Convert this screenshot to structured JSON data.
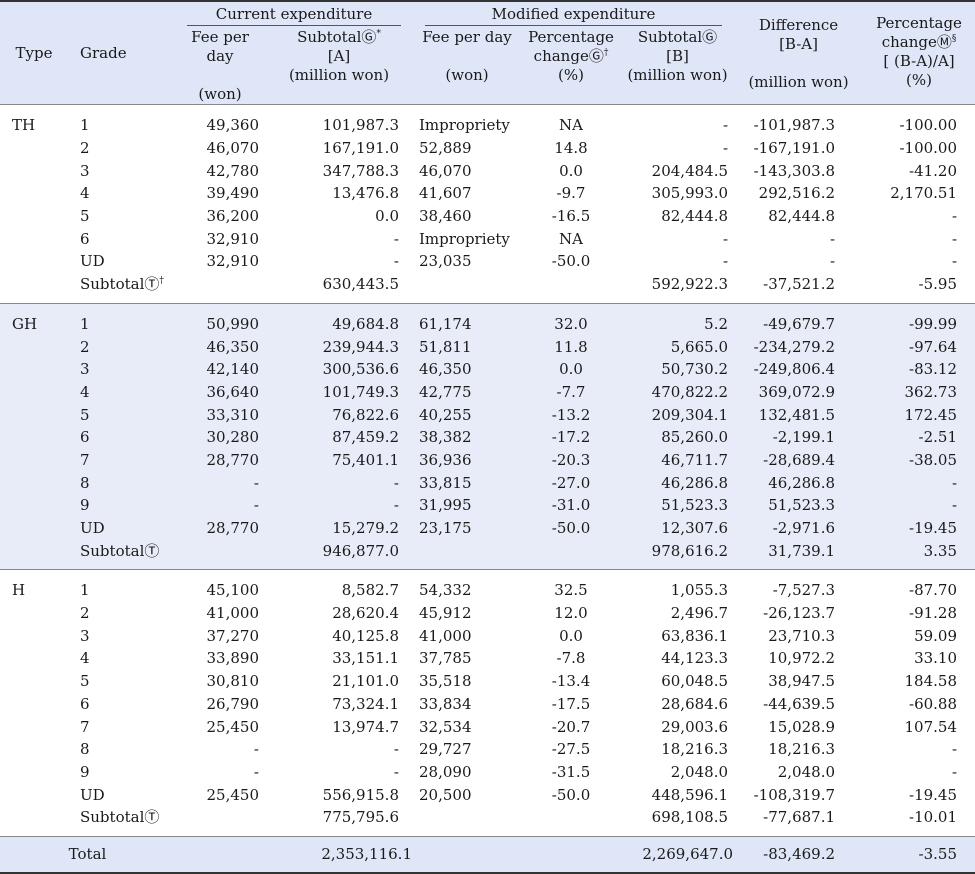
{
  "header": {
    "type": "Type",
    "grade": "Grade",
    "current_group": "Current expenditure",
    "modified_group": "Modified expenditure",
    "difference": "Difference",
    "difference_sub": "[B-A]",
    "difference_unit": "(million won)",
    "pct_change_total": "Percentage",
    "pct_change_total_2": "changeⓂ",
    "pct_change_total_sup": "§",
    "pct_change_total_sub": "[ (B-A)/A]",
    "pct_change_total_unit": "(%)",
    "fee_per_day": "Fee per day",
    "fee_unit": "(won)",
    "subtotal_current": "SubtotalⒼ",
    "subtotal_current_sup": "*",
    "subtotal_current_sub": "[A]",
    "subtotal_unit": "(million won)",
    "pct_change": "Percentage",
    "pct_change_2": "changeⒼ",
    "pct_change_sup": "†",
    "pct_unit": "(%)",
    "subtotal_modified": "SubtotalⒼ",
    "subtotal_modified_sub": "[B]",
    "subtotal_modified_unit": "(million won)"
  },
  "sections": [
    {
      "type": "TH",
      "rows": [
        {
          "grade": "1",
          "fee1": "49,360",
          "sub1": "101,987.3",
          "fee2": "Impropriety",
          "pct": "NA",
          "sub2": "-",
          "diff": "-101,987.3",
          "pct2": "-100.00"
        },
        {
          "grade": "2",
          "fee1": "46,070",
          "sub1": "167,191.0",
          "fee2": "52,889",
          "pct": "14.8",
          "sub2": "-",
          "diff": "-167,191.0",
          "pct2": "-100.00"
        },
        {
          "grade": "3",
          "fee1": "42,780",
          "sub1": "347,788.3",
          "fee2": "46,070",
          "pct": "0.0",
          "sub2": "204,484.5",
          "diff": "-143,303.8",
          "pct2": "-41.20"
        },
        {
          "grade": "4",
          "fee1": "39,490",
          "sub1": "13,476.8",
          "fee2": "41,607",
          "pct": "-9.7",
          "sub2": "305,993.0",
          "diff": "292,516.2",
          "pct2": "2,170.51"
        },
        {
          "grade": "5",
          "fee1": "36,200",
          "sub1": "0.0",
          "fee2": "38,460",
          "pct": "-16.5",
          "sub2": "82,444.8",
          "diff": "82,444.8",
          "pct2": "-"
        },
        {
          "grade": "6",
          "fee1": "32,910",
          "sub1": "-",
          "fee2": "Impropriety",
          "pct": "NA",
          "sub2": "-",
          "diff": "-",
          "pct2": "-"
        },
        {
          "grade": "UD",
          "fee1": "32,910",
          "sub1": "-",
          "fee2": "23,035",
          "pct": "-50.0",
          "sub2": "-",
          "diff": "-",
          "pct2": "-"
        },
        {
          "grade": "SubtotalⓉ",
          "grade_sup": "†",
          "fee1": "",
          "sub1": "630,443.5",
          "fee2": "",
          "pct": "",
          "sub2": "592,922.3",
          "diff": "-37,521.2",
          "pct2": "-5.95"
        }
      ]
    },
    {
      "type": "GH",
      "rows": [
        {
          "grade": "1",
          "fee1": "50,990",
          "sub1": "49,684.8",
          "fee2": "61,174",
          "pct": "32.0",
          "sub2": "5.2",
          "diff": "-49,679.7",
          "pct2": "-99.99"
        },
        {
          "grade": "2",
          "fee1": "46,350",
          "sub1": "239,944.3",
          "fee2": "51,811",
          "pct": "11.8",
          "sub2": "5,665.0",
          "diff": "-234,279.2",
          "pct2": "-97.64"
        },
        {
          "grade": "3",
          "fee1": "42,140",
          "sub1": "300,536.6",
          "fee2": "46,350",
          "pct": "0.0",
          "sub2": "50,730.2",
          "diff": "-249,806.4",
          "pct2": "-83.12"
        },
        {
          "grade": "4",
          "fee1": "36,640",
          "sub1": "101,749.3",
          "fee2": "42,775",
          "pct": "-7.7",
          "sub2": "470,822.2",
          "diff": "369,072.9",
          "pct2": "362.73"
        },
        {
          "grade": "5",
          "fee1": "33,310",
          "sub1": "76,822.6",
          "fee2": "40,255",
          "pct": "-13.2",
          "sub2": "209,304.1",
          "diff": "132,481.5",
          "pct2": "172.45"
        },
        {
          "grade": "6",
          "fee1": "30,280",
          "sub1": "87,459.2",
          "fee2": "38,382",
          "pct": "-17.2",
          "sub2": "85,260.0",
          "diff": "-2,199.1",
          "pct2": "-2.51"
        },
        {
          "grade": "7",
          "fee1": "28,770",
          "sub1": "75,401.1",
          "fee2": "36,936",
          "pct": "-20.3",
          "sub2": "46,711.7",
          "diff": "-28,689.4",
          "pct2": "-38.05"
        },
        {
          "grade": "8",
          "fee1": "-",
          "sub1": "-",
          "fee2": "33,815",
          "pct": "-27.0",
          "sub2": "46,286.8",
          "diff": "46,286.8",
          "pct2": "-"
        },
        {
          "grade": "9",
          "fee1": "-",
          "sub1": "-",
          "fee2": "31,995",
          "pct": "-31.0",
          "sub2": "51,523.3",
          "diff": "51,523.3",
          "pct2": "-"
        },
        {
          "grade": "UD",
          "fee1": "28,770",
          "sub1": "15,279.2",
          "fee2": "23,175",
          "pct": "-50.0",
          "sub2": "12,307.6",
          "diff": "-2,971.6",
          "pct2": "-19.45"
        },
        {
          "grade": "SubtotalⓉ",
          "fee1": "",
          "sub1": "946,877.0",
          "fee2": "",
          "pct": "",
          "sub2": "978,616.2",
          "diff": "31,739.1",
          "pct2": "3.35"
        }
      ]
    },
    {
      "type": "H",
      "rows": [
        {
          "grade": "1",
          "fee1": "45,100",
          "sub1": "8,582.7",
          "fee2": "54,332",
          "pct": "32.5",
          "sub2": "1,055.3",
          "diff": "-7,527.3",
          "pct2": "-87.70"
        },
        {
          "grade": "2",
          "fee1": "41,000",
          "sub1": "28,620.4",
          "fee2": "45,912",
          "pct": "12.0",
          "sub2": "2,496.7",
          "diff": "-26,123.7",
          "pct2": "-91.28"
        },
        {
          "grade": "3",
          "fee1": "37,270",
          "sub1": "40,125.8",
          "fee2": "41,000",
          "pct": "0.0",
          "sub2": "63,836.1",
          "diff": "23,710.3",
          "pct2": "59.09"
        },
        {
          "grade": "4",
          "fee1": "33,890",
          "sub1": "33,151.1",
          "fee2": "37,785",
          "pct": "-7.8",
          "sub2": "44,123.3",
          "diff": "10,972.2",
          "pct2": "33.10"
        },
        {
          "grade": "5",
          "fee1": "30,810",
          "sub1": "21,101.0",
          "fee2": "35,518",
          "pct": "-13.4",
          "sub2": "60,048.5",
          "diff": "38,947.5",
          "pct2": "184.58"
        },
        {
          "grade": "6",
          "fee1": "26,790",
          "sub1": "73,324.1",
          "fee2": "33,834",
          "pct": "-17.5",
          "sub2": "28,684.6",
          "diff": "-44,639.5",
          "pct2": "-60.88"
        },
        {
          "grade": "7",
          "fee1": "25,450",
          "sub1": "13,974.7",
          "fee2": "32,534",
          "pct": "-20.7",
          "sub2": "29,003.6",
          "diff": "15,028.9",
          "pct2": "107.54"
        },
        {
          "grade": "8",
          "fee1": "-",
          "sub1": "-",
          "fee2": "29,727",
          "pct": "-27.5",
          "sub2": "18,216.3",
          "diff": "18,216.3",
          "pct2": "-"
        },
        {
          "grade": "9",
          "fee1": "-",
          "sub1": "-",
          "fee2": "28,090",
          "pct": "-31.5",
          "sub2": "2,048.0",
          "diff": "2,048.0",
          "pct2": "-"
        },
        {
          "grade": "UD",
          "fee1": "25,450",
          "sub1": "556,915.8",
          "fee2": "20,500",
          "pct": "-50.0",
          "sub2": "448,596.1",
          "diff": "-108,319.7",
          "pct2": "-19.45"
        },
        {
          "grade": "SubtotalⓉ",
          "fee1": "",
          "sub1": "775,795.6",
          "fee2": "",
          "pct": "",
          "sub2": "698,108.5",
          "diff": "-77,687.1",
          "pct2": "-10.01"
        }
      ]
    }
  ],
  "total": {
    "label": "Total",
    "sub1": "2,353,116.1",
    "sub2": "2,269,647.0",
    "diff": "-83,469.2",
    "pct2": "-3.55"
  }
}
